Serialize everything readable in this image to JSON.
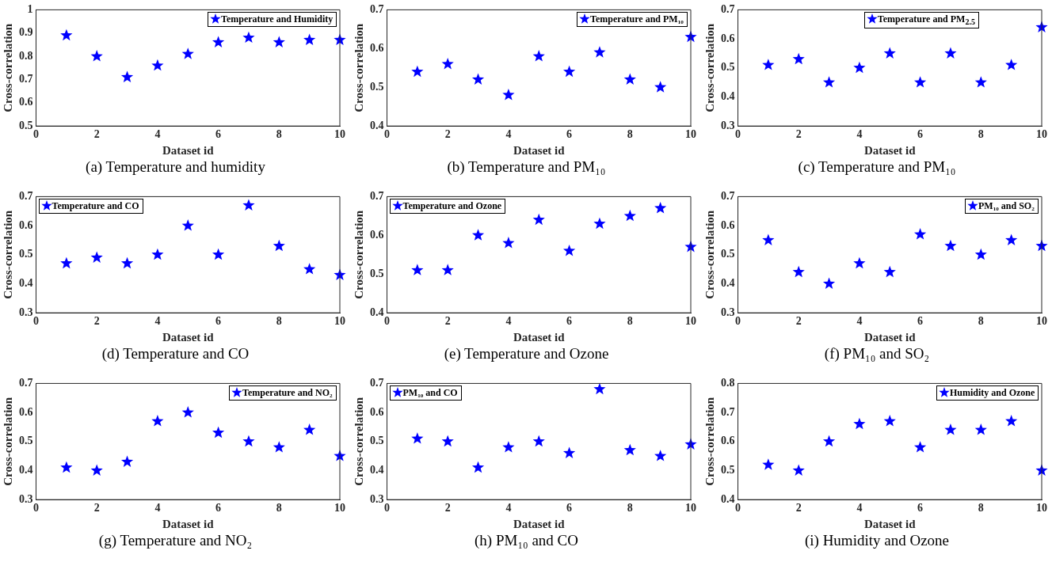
{
  "chart_data": [
    {
      "type": "scatter",
      "title": "(a) Temperature and humidity",
      "xlabel": "Dataset id",
      "ylabel": "Cross-correlation",
      "legend": "top right",
      "marker": "star",
      "x": [
        1,
        2,
        3,
        4,
        5,
        6,
        7,
        8,
        9,
        10
      ],
      "xlim": [
        0,
        10
      ],
      "xticks": [
        0,
        2,
        4,
        6,
        8,
        10
      ],
      "ylim": [
        0.5,
        1
      ],
      "yticks": [
        0.5,
        0.6,
        0.7,
        0.8,
        0.9,
        1
      ],
      "series": [
        {
          "name": "Temperature and Humidity",
          "color": "#0000ff",
          "values": [
            0.89,
            0.8,
            0.71,
            0.76,
            0.81,
            0.86,
            0.88,
            0.86,
            0.87,
            0.87
          ]
        }
      ]
    },
    {
      "type": "scatter",
      "title": "(b) Temperature and PM₁₀",
      "xlabel": "Dataset id",
      "ylabel": "Cross-correlation",
      "legend": "top right",
      "marker": "star",
      "x": [
        1,
        2,
        3,
        4,
        5,
        6,
        7,
        8,
        9,
        10
      ],
      "xlim": [
        0,
        10
      ],
      "xticks": [
        0,
        2,
        4,
        6,
        8,
        10
      ],
      "ylim": [
        0.4,
        0.7
      ],
      "yticks": [
        0.4,
        0.5,
        0.6,
        0.7
      ],
      "series": [
        {
          "name": "Temperature and PM₁₀",
          "color": "#0000ff",
          "values": [
            0.54,
            0.56,
            0.52,
            0.48,
            0.58,
            0.54,
            0.59,
            0.52,
            0.5,
            0.63
          ]
        }
      ]
    },
    {
      "type": "scatter",
      "title": "(c) Temperature and PM₁₀",
      "xlabel": "Dataset id",
      "ylabel": "Cross-correlation",
      "legend": "top",
      "marker": "star",
      "x": [
        1,
        2,
        3,
        4,
        5,
        6,
        7,
        8,
        9,
        10
      ],
      "xlim": [
        0,
        10
      ],
      "xticks": [
        0,
        2,
        4,
        6,
        8,
        10
      ],
      "ylim": [
        0.3,
        0.7
      ],
      "yticks": [
        0.3,
        0.4,
        0.5,
        0.6,
        0.7
      ],
      "series": [
        {
          "name": "Temperature and PM$_{2.5}$",
          "color": "#0000ff",
          "values": [
            0.51,
            0.53,
            0.45,
            0.5,
            0.55,
            0.45,
            0.55,
            0.45,
            0.51,
            0.64
          ]
        }
      ]
    },
    {
      "type": "scatter",
      "title": "(d) Temperature and CO",
      "xlabel": "Dataset id",
      "ylabel": "Cross-correlation",
      "legend": "top left",
      "marker": "star",
      "x": [
        1,
        2,
        3,
        4,
        5,
        6,
        7,
        8,
        9,
        10
      ],
      "xlim": [
        0,
        10
      ],
      "xticks": [
        0,
        2,
        4,
        6,
        8,
        10
      ],
      "ylim": [
        0.3,
        0.7
      ],
      "yticks": [
        0.3,
        0.4,
        0.5,
        0.6,
        0.7
      ],
      "series": [
        {
          "name": "Temperature and CO",
          "color": "#0000ff",
          "values": [
            0.47,
            0.49,
            0.47,
            0.5,
            0.6,
            0.5,
            0.67,
            0.53,
            0.45,
            0.43
          ]
        }
      ]
    },
    {
      "type": "scatter",
      "title": "(e) Temperature and Ozone",
      "xlabel": "Dataset id",
      "ylabel": "Cross-correlation",
      "legend": "top left",
      "marker": "star",
      "x": [
        1,
        2,
        3,
        4,
        5,
        6,
        7,
        8,
        9,
        10
      ],
      "xlim": [
        0,
        10
      ],
      "xticks": [
        0,
        2,
        4,
        6,
        8,
        10
      ],
      "ylim": [
        0.4,
        0.7
      ],
      "yticks": [
        0.4,
        0.5,
        0.6,
        0.7
      ],
      "series": [
        {
          "name": "Temperature and Ozone",
          "color": "#0000ff",
          "values": [
            0.51,
            0.51,
            0.6,
            0.58,
            0.64,
            0.56,
            0.63,
            0.65,
            0.67,
            0.57
          ]
        }
      ]
    },
    {
      "type": "scatter",
      "title": "(f) PM₁₀ and SO₂",
      "xlabel": "Dataset id",
      "ylabel": "Cross-correlation",
      "legend": "top right",
      "marker": "star",
      "x": [
        1,
        2,
        3,
        4,
        5,
        6,
        7,
        8,
        9,
        10
      ],
      "xlim": [
        0,
        10
      ],
      "xticks": [
        0,
        2,
        4,
        6,
        8,
        10
      ],
      "ylim": [
        0.3,
        0.7
      ],
      "yticks": [
        0.3,
        0.4,
        0.5,
        0.6,
        0.7
      ],
      "series": [
        {
          "name": "PM₁₀ and SO₂",
          "color": "#0000ff",
          "values": [
            0.55,
            0.44,
            0.4,
            0.47,
            0.44,
            0.57,
            0.53,
            0.5,
            0.55,
            0.53
          ]
        }
      ]
    },
    {
      "type": "scatter",
      "title": "(g) Temperature and NO₂",
      "xlabel": "Dataset id",
      "ylabel": "Cross-correlation",
      "legend": "top right",
      "marker": "star",
      "x": [
        1,
        2,
        3,
        4,
        5,
        6,
        7,
        8,
        9,
        10
      ],
      "xlim": [
        0,
        10
      ],
      "xticks": [
        0,
        2,
        4,
        6,
        8,
        10
      ],
      "ylim": [
        0.3,
        0.7
      ],
      "yticks": [
        0.3,
        0.4,
        0.5,
        0.6,
        0.7
      ],
      "series": [
        {
          "name": "Temperature and NO₂",
          "color": "#0000ff",
          "values": [
            0.41,
            0.4,
            0.43,
            0.57,
            0.6,
            0.53,
            0.5,
            0.48,
            0.54,
            0.45
          ]
        }
      ]
    },
    {
      "type": "scatter",
      "title": "(h) PM₁₀ and CO",
      "xlabel": "Dataset id",
      "ylabel": "Cross-correlation",
      "legend": "top left",
      "marker": "star",
      "x": [
        1,
        2,
        3,
        4,
        5,
        6,
        7,
        8,
        9,
        10
      ],
      "xlim": [
        0,
        10
      ],
      "xticks": [
        0,
        2,
        4,
        6,
        8,
        10
      ],
      "ylim": [
        0.3,
        0.7
      ],
      "yticks": [
        0.3,
        0.4,
        0.5,
        0.6,
        0.7
      ],
      "series": [
        {
          "name": "PM₁₀ and CO",
          "color": "#0000ff",
          "values": [
            0.51,
            0.5,
            0.41,
            0.48,
            0.5,
            0.46,
            0.68,
            0.47,
            0.45,
            0.49
          ]
        }
      ]
    },
    {
      "type": "scatter",
      "title": "(i) Humidity and Ozone",
      "xlabel": "Dataset id",
      "ylabel": "Cross-correlation",
      "legend": "top right",
      "marker": "star",
      "x": [
        1,
        2,
        3,
        4,
        5,
        6,
        7,
        8,
        9,
        10
      ],
      "xlim": [
        0,
        10
      ],
      "xticks": [
        0,
        2,
        4,
        6,
        8,
        10
      ],
      "ylim": [
        0.4,
        0.8
      ],
      "yticks": [
        0.4,
        0.5,
        0.6,
        0.7,
        0.8
      ],
      "series": [
        {
          "name": "Humidity and Ozone",
          "color": "#0000ff",
          "values": [
            0.52,
            0.5,
            0.6,
            0.66,
            0.67,
            0.58,
            0.64,
            0.64,
            0.67,
            0.5
          ]
        }
      ]
    }
  ]
}
